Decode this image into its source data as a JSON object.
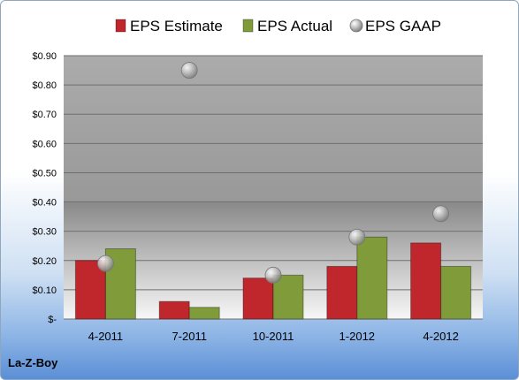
{
  "footer": {
    "company": "La-Z-Boy"
  },
  "chart_data": {
    "type": "bar",
    "categories": [
      "4-2011",
      "7-2011",
      "10-2011",
      "1-2012",
      "4-2012"
    ],
    "series": [
      {
        "name": "EPS Estimate",
        "kind": "bar",
        "color": "#c0272d",
        "values": [
          0.2,
          0.06,
          0.14,
          0.18,
          0.26
        ]
      },
      {
        "name": "EPS Actual",
        "kind": "bar",
        "color": "#7f9b3a",
        "values": [
          0.24,
          0.04,
          0.15,
          0.28,
          0.18
        ]
      },
      {
        "name": "EPS GAAP",
        "kind": "scatter",
        "color": "#a9a9a9",
        "values": [
          0.19,
          0.85,
          0.15,
          0.28,
          0.36
        ]
      }
    ],
    "y_ticks": [
      "$-",
      "$0.10",
      "$0.20",
      "$0.30",
      "$0.40",
      "$0.50",
      "$0.60",
      "$0.70",
      "$0.80",
      "$0.90"
    ],
    "ylim": [
      0,
      0.9
    ],
    "grid": true,
    "legend_position": "top"
  }
}
